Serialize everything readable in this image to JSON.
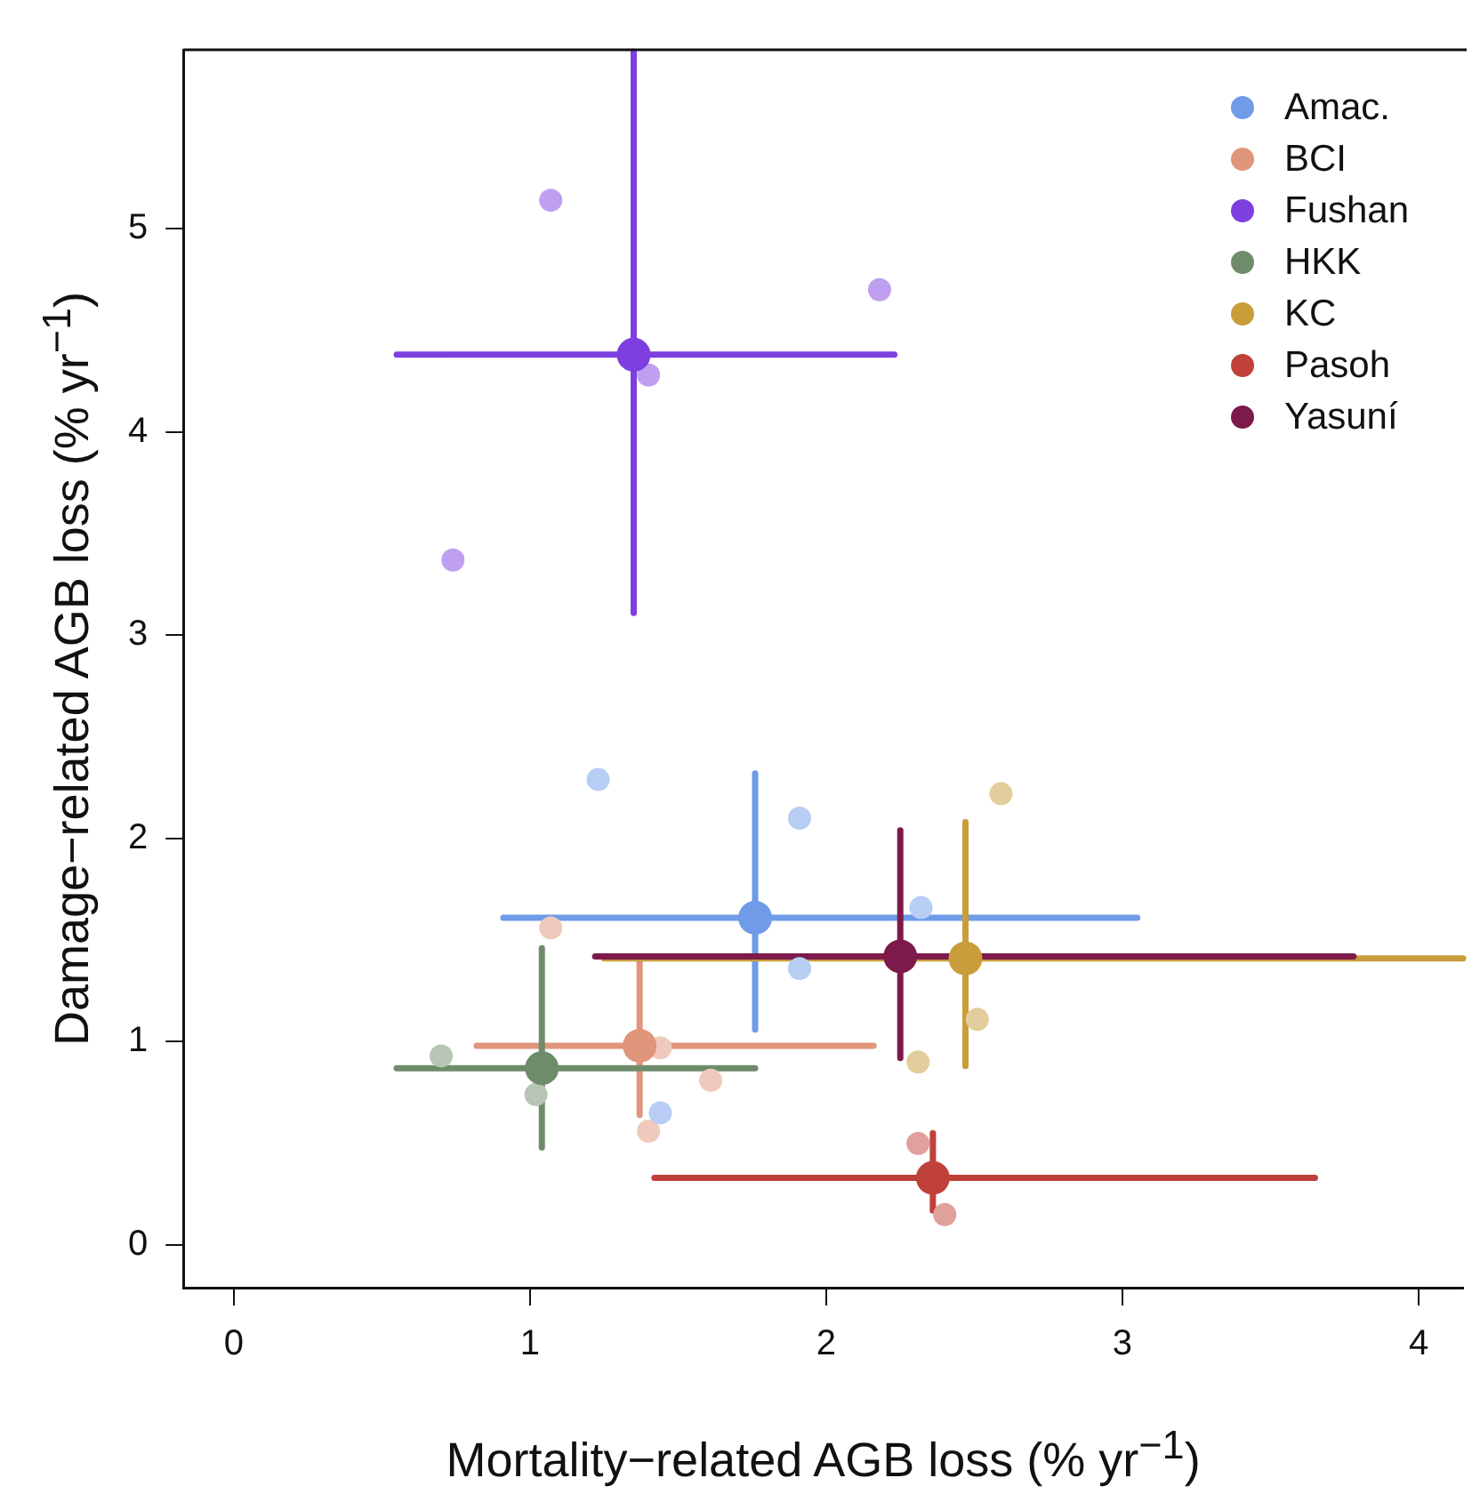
{
  "chart_data": {
    "type": "scatter",
    "xlabel": "Mortality−related AGB loss (% yr$^{−1}$)",
    "ylabel": "Damage−related AGB loss (% yr$^{−1}$)",
    "xlim": [
      -0.17,
      4.15
    ],
    "ylim": [
      -0.21,
      5.88
    ],
    "xticks": [
      0,
      1,
      2,
      3,
      4
    ],
    "yticks": [
      0,
      1,
      2,
      3,
      4,
      5
    ],
    "grid": false,
    "legend": "top right",
    "marker": "circle",
    "series": [
      {
        "color": "#b7cdf3",
        "x": [
          1.23,
          1.91,
          2.32,
          1.91,
          1.44
        ],
        "values": [
          2.29,
          2.1,
          1.66,
          1.36,
          0.65
        ]
      },
      {
        "color": "#efcabc",
        "x": [
          1.07,
          1.44,
          1.61,
          1.4
        ],
        "values": [
          1.56,
          0.97,
          0.81,
          0.56
        ]
      },
      {
        "color": "#bf9ff0",
        "x": [
          1.07,
          2.18,
          1.4,
          0.74
        ],
        "values": [
          5.14,
          4.7,
          4.28,
          3.37
        ]
      },
      {
        "color": "#b7c5b4",
        "x": [
          0.7,
          1.02
        ],
        "values": [
          0.93,
          0.74
        ]
      },
      {
        "color": "#e3cd9c",
        "x": [
          2.59,
          2.51,
          2.31
        ],
        "values": [
          2.22,
          1.11,
          0.9
        ]
      },
      {
        "color": "#e0a09c",
        "x": [
          2.31,
          2.4
        ],
        "values": [
          0.5,
          0.15
        ]
      },
      {
        "name": "Amac.",
        "color": "#6f9be8",
        "x": [
          1.76
        ],
        "values": [
          1.61
        ],
        "xerrors": [
          [
            0.91,
            3.05
          ]
        ],
        "errors": [
          [
            1.06,
            2.32
          ]
        ]
      },
      {
        "name": "BCI",
        "color": "#e0967a",
        "x": [
          1.37
        ],
        "values": [
          0.98
        ],
        "xerrors": [
          [
            0.82,
            2.16
          ]
        ],
        "errors": [
          [
            0.64,
            1.41
          ]
        ]
      },
      {
        "name": "Fushan",
        "color": "#7e3fe0",
        "x": [
          1.35
        ],
        "values": [
          4.38
        ],
        "xerrors": [
          [
            0.55,
            2.23
          ]
        ],
        "errors": [
          [
            3.11,
            5.87
          ]
        ]
      },
      {
        "name": "HKK",
        "color": "#6f8c6a",
        "x": [
          1.04
        ],
        "values": [
          0.87
        ],
        "xerrors": [
          [
            0.55,
            1.76
          ]
        ],
        "errors": [
          [
            0.48,
            1.46
          ]
        ]
      },
      {
        "name": "KC",
        "color": "#c89d3a",
        "x": [
          2.47
        ],
        "values": [
          1.41
        ],
        "xerrors": [
          [
            1.25,
            4.15
          ]
        ],
        "errors": [
          [
            0.88,
            2.08
          ]
        ]
      },
      {
        "name": "Pasoh",
        "color": "#c0413a",
        "x": [
          2.36
        ],
        "values": [
          0.33
        ],
        "xerrors": [
          [
            1.42,
            3.65
          ]
        ],
        "errors": [
          [
            0.17,
            0.55
          ]
        ]
      },
      {
        "name": "Yasuní",
        "color": "#7d1a4a",
        "x": [
          2.25
        ],
        "values": [
          1.42
        ],
        "xerrors": [
          [
            1.22,
            3.78
          ]
        ],
        "errors": [
          [
            0.92,
            2.04
          ]
        ]
      }
    ]
  }
}
